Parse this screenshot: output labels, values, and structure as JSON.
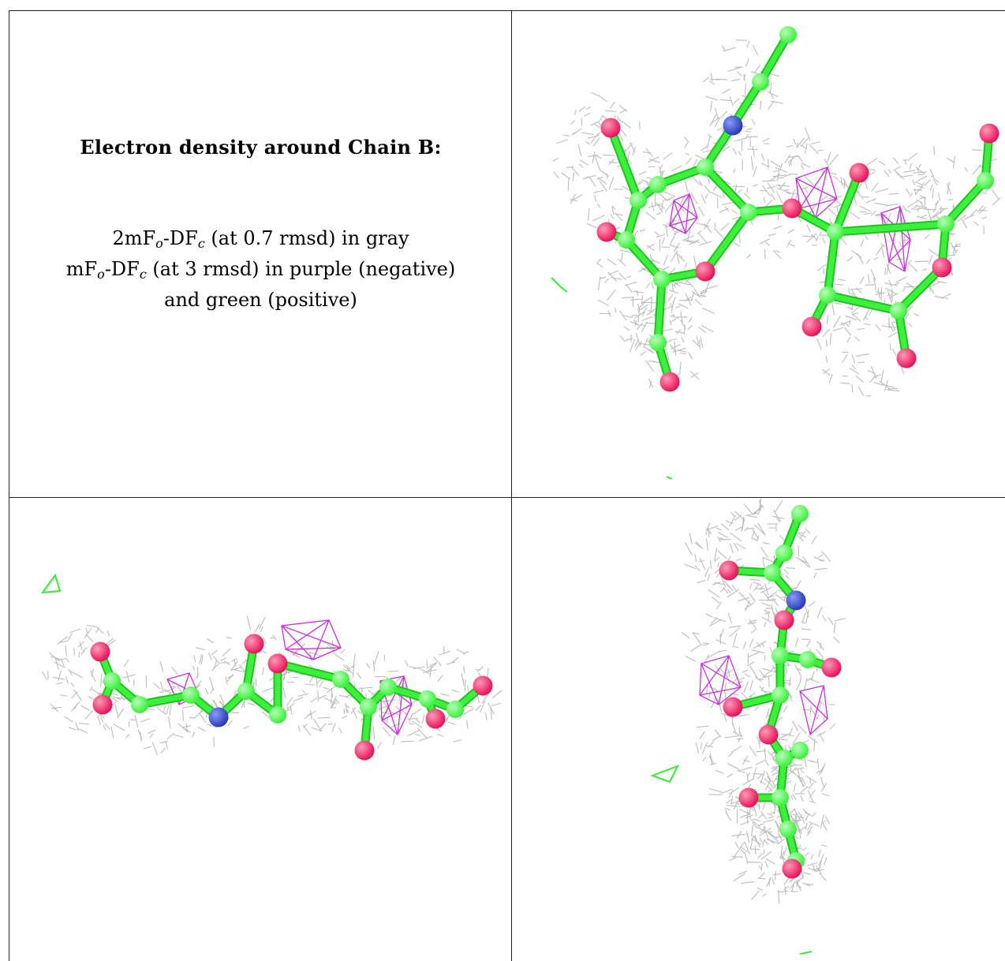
{
  "caption": {
    "title": "Electron density around Chain B:",
    "line1": {
      "pre": "2mF",
      "sub1": "o",
      "mid": "-DF",
      "sub2": "c",
      "post": " (at 0.7 rmsd) in gray"
    },
    "line2": {
      "pre": "mF",
      "sub1": "o",
      "mid": "-DF",
      "sub2": "c",
      "post": " (at 3 rmsd) in purple (negative)"
    },
    "line3": "and green (positive)"
  },
  "colors": {
    "mesh_gray": "#b8b8b8",
    "carbon_green": "#3cf03c",
    "oxygen_red": "#e8145a",
    "nitrogen_blue": "#2a3cb4",
    "negative_purple": "#c832dc",
    "positive_green": "#3ce63c"
  },
  "views": [
    {
      "name": "view-top-right",
      "view": "front"
    },
    {
      "name": "view-bottom-left",
      "view": "side"
    },
    {
      "name": "view-bottom-right",
      "view": "end-on"
    }
  ]
}
